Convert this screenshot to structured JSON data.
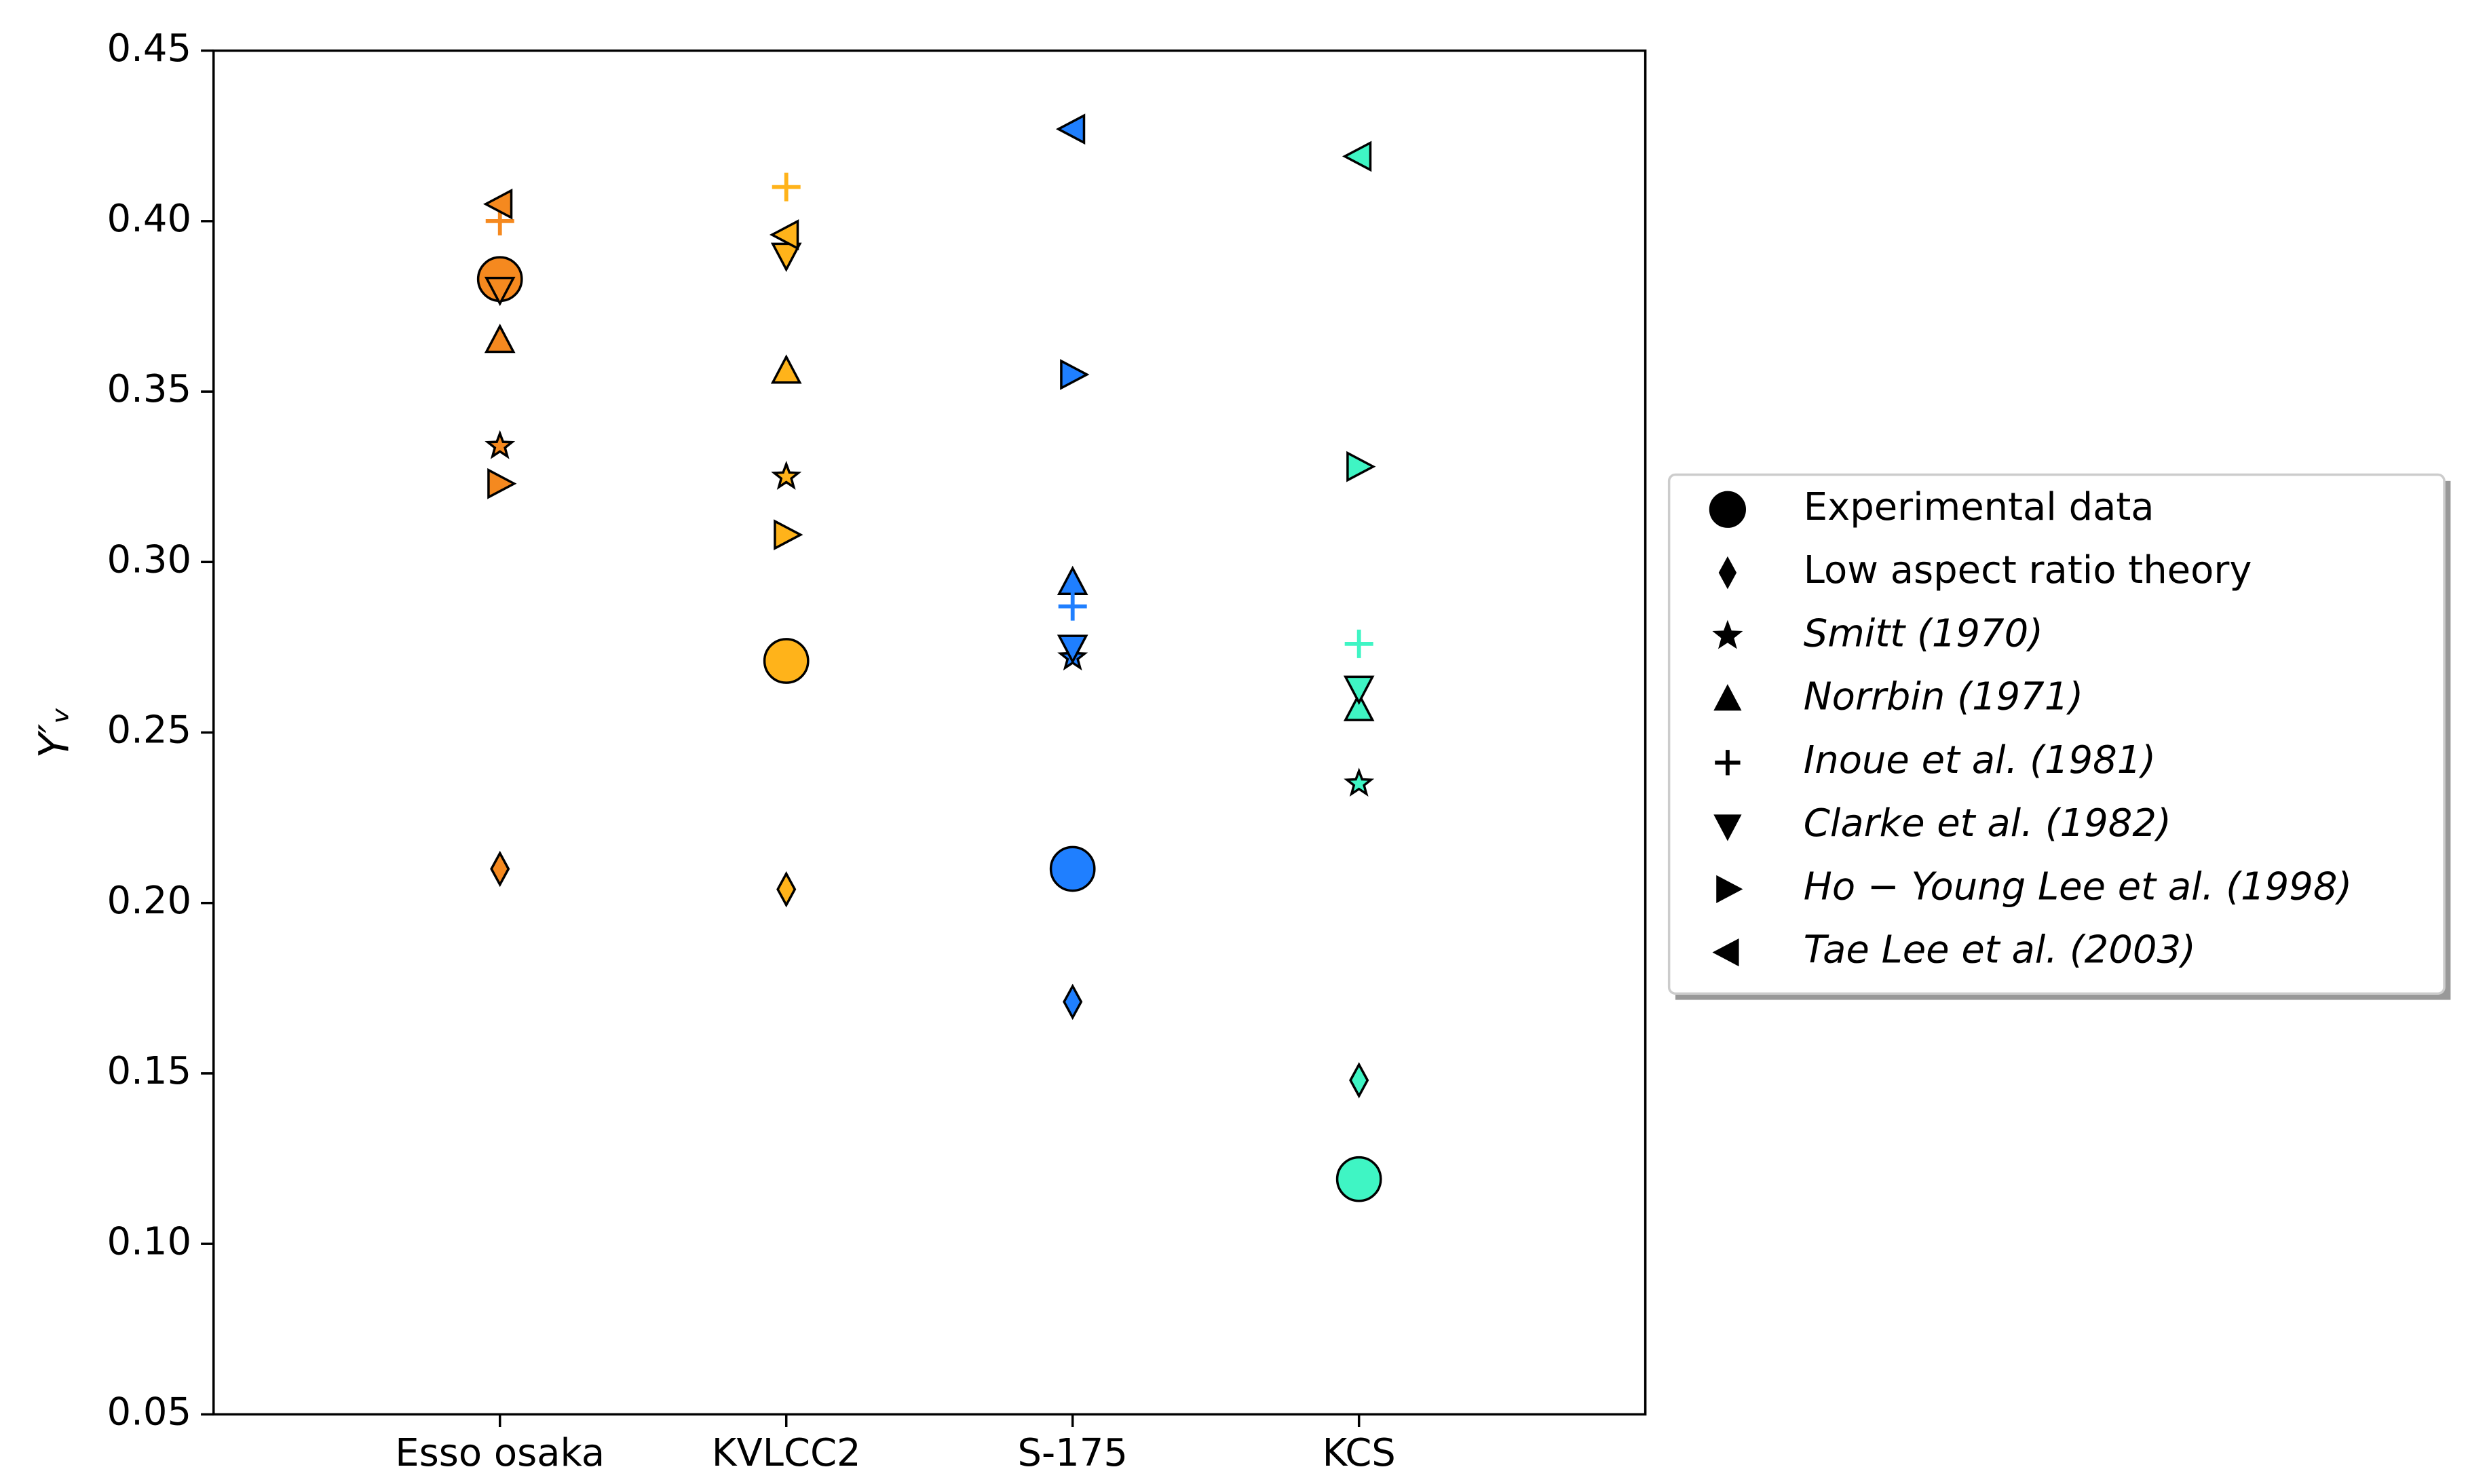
{
  "chart_data": {
    "type": "scatter",
    "ylabel": "Y′ᵥ",
    "categories": [
      "Esso osaka",
      "KVLCC2",
      "S-175",
      "KCS"
    ],
    "category_colors": [
      "#f5891f",
      "#ffb31a",
      "#1f7fff",
      "#3ff5c4"
    ],
    "xlim": [
      -1,
      4
    ],
    "ylim": [
      0.05,
      0.45
    ],
    "yticks": [
      0.05,
      {
        "value": 0.1,
        "label": "0.10"
      },
      0.15,
      {
        "value": 0.2,
        "label": "0.20"
      },
      0.25,
      {
        "value": 0.3,
        "label": "0.30"
      },
      0.35,
      {
        "value": 0.4,
        "label": "0.40"
      },
      0.45
    ],
    "legend_position": "right",
    "series": [
      {
        "name": "Experimental data",
        "marker": "circle",
        "values": [
          0.383,
          0.271,
          0.21,
          0.119
        ]
      },
      {
        "name": " Low aspect ratio theory",
        "marker": "diamond",
        "values": [
          0.21,
          0.204,
          0.171,
          0.148
        ]
      },
      {
        "name": "Smitt (1970)",
        "marker": "star",
        "values": [
          0.334,
          0.325,
          0.272,
          0.235
        ]
      },
      {
        "name": "Norrbin (1971)",
        "marker": "triangle-up",
        "values": [
          0.365,
          0.356,
          0.294,
          0.257
        ]
      },
      {
        "name": "Inoue et al. (1981)",
        "marker": "plus",
        "values": [
          0.4,
          0.41,
          0.287,
          0.276
        ]
      },
      {
        "name": "Clarke et al. (1982)",
        "marker": "triangle-down",
        "values": [
          0.38,
          0.39,
          0.275,
          0.263
        ]
      },
      {
        "name": "Ho − Young Lee et al. (1998)",
        "marker": "triangle-right",
        "values": [
          0.323,
          0.308,
          0.355,
          0.328
        ]
      },
      {
        "name": "Tae Lee et al. (2003)",
        "marker": "triangle-left",
        "values": [
          0.405,
          0.396,
          0.427,
          0.419
        ]
      }
    ]
  }
}
